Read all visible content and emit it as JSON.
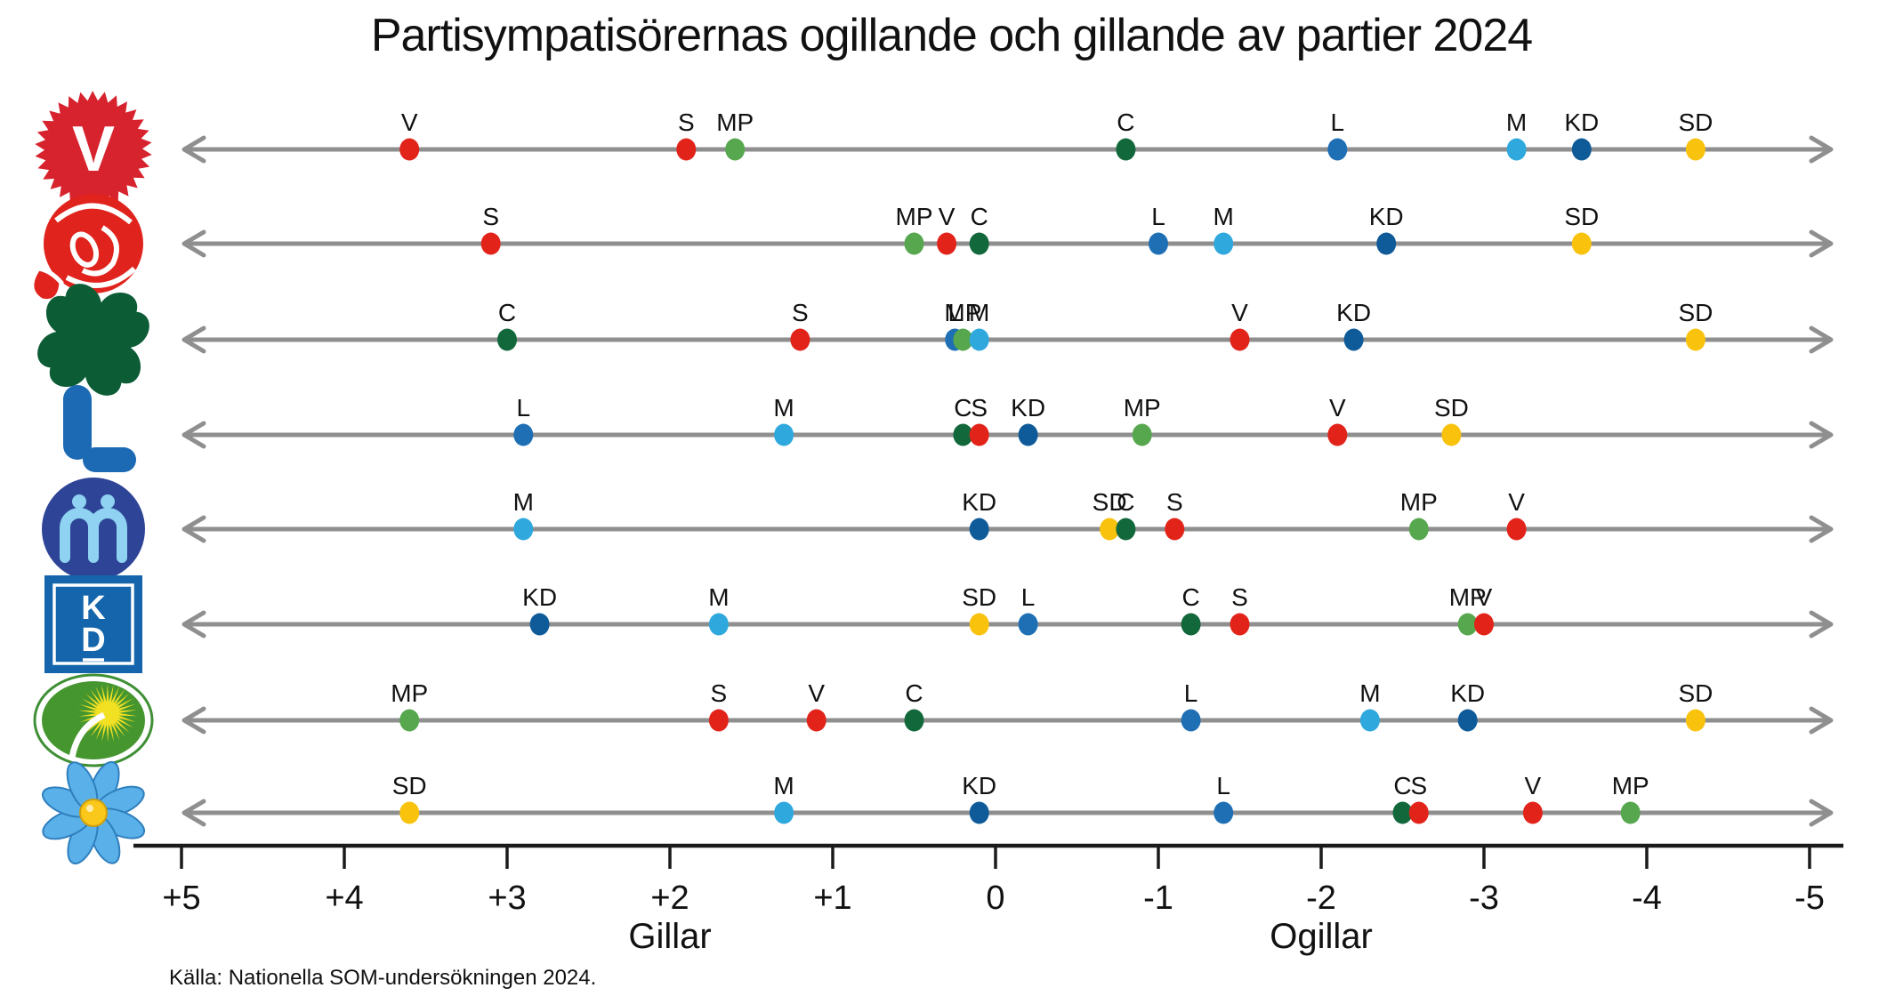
{
  "title": "Partisympatisörernas ogillande och gillande av partier 2024",
  "source": "Källa: Nationella SOM-undersökningen 2024.",
  "axis": {
    "min": -5,
    "max": 5,
    "tick_values": [
      5,
      4,
      3,
      2,
      1,
      0,
      -1,
      -2,
      -3,
      -4,
      -5
    ],
    "tick_labels": [
      "+5",
      "+4",
      "+3",
      "+2",
      "+1",
      "0",
      "-1",
      "-2",
      "-3",
      "-4",
      "-5"
    ],
    "like_label": "Gillar",
    "dislike_label": "Ogillar"
  },
  "party_colors": {
    "V": "#e2231a",
    "S": "#e2231a",
    "MP": "#56a74e",
    "C": "#12683b",
    "L": "#1f6fb5",
    "M": "#2fa8de",
    "KD": "#0f5b99",
    "SD": "#f9c20d"
  },
  "chart_data": {
    "type": "scatter",
    "description": "Dot number lines: each row shows how sympathizers of one party (logo at left) rate all parties on a like/dislike scale from +5 (Gillar) to -5 (Ogillar).",
    "scale": [
      5,
      -5
    ],
    "rows": [
      {
        "sympathizers": "V",
        "logo": "vansterpartiet-logo",
        "points": [
          {
            "party": "V",
            "value": 3.6
          },
          {
            "party": "S",
            "value": 1.9
          },
          {
            "party": "MP",
            "value": 1.6
          },
          {
            "party": "C",
            "value": -0.8
          },
          {
            "party": "L",
            "value": -2.1
          },
          {
            "party": "M",
            "value": -3.2
          },
          {
            "party": "KD",
            "value": -3.6
          },
          {
            "party": "SD",
            "value": -4.3
          }
        ]
      },
      {
        "sympathizers": "S",
        "logo": "socialdemokraterna-logo",
        "points": [
          {
            "party": "S",
            "value": 3.1
          },
          {
            "party": "MP",
            "value": 0.5
          },
          {
            "party": "V",
            "value": 0.3
          },
          {
            "party": "C",
            "value": 0.1
          },
          {
            "party": "L",
            "value": -1.0
          },
          {
            "party": "M",
            "value": -1.4
          },
          {
            "party": "KD",
            "value": -2.4
          },
          {
            "party": "SD",
            "value": -3.6
          }
        ]
      },
      {
        "sympathizers": "C",
        "logo": "centerpartiet-logo",
        "points": [
          {
            "party": "C",
            "value": 3.0
          },
          {
            "party": "S",
            "value": 1.2
          },
          {
            "party": "L",
            "value": 0.25
          },
          {
            "party": "MP",
            "value": 0.2
          },
          {
            "party": "M",
            "value": 0.1
          },
          {
            "party": "V",
            "value": -1.5
          },
          {
            "party": "KD",
            "value": -2.2
          },
          {
            "party": "SD",
            "value": -4.3
          }
        ]
      },
      {
        "sympathizers": "L",
        "logo": "liberalerna-logo",
        "points": [
          {
            "party": "L",
            "value": 2.9
          },
          {
            "party": "M",
            "value": 1.3
          },
          {
            "party": "C",
            "value": 0.2
          },
          {
            "party": "S",
            "value": 0.1
          },
          {
            "party": "KD",
            "value": -0.2
          },
          {
            "party": "MP",
            "value": -0.9
          },
          {
            "party": "V",
            "value": -2.1
          },
          {
            "party": "SD",
            "value": -2.8
          }
        ]
      },
      {
        "sympathizers": "M",
        "logo": "moderaterna-logo",
        "points": [
          {
            "party": "M",
            "value": 2.9
          },
          {
            "party": "KD",
            "value": 0.1
          },
          {
            "party": "SD",
            "value": -0.7
          },
          {
            "party": "C",
            "value": -0.8
          },
          {
            "party": "S",
            "value": -1.1
          },
          {
            "party": "MP",
            "value": -2.6
          },
          {
            "party": "V",
            "value": -3.2
          }
        ]
      },
      {
        "sympathizers": "KD",
        "logo": "kristdemokraterna-logo",
        "points": [
          {
            "party": "KD",
            "value": 2.8
          },
          {
            "party": "M",
            "value": 1.7
          },
          {
            "party": "SD",
            "value": 0.1
          },
          {
            "party": "L",
            "value": -0.2
          },
          {
            "party": "C",
            "value": -1.2
          },
          {
            "party": "S",
            "value": -1.5
          },
          {
            "party": "MP",
            "value": -2.9
          },
          {
            "party": "V",
            "value": -3.0
          }
        ]
      },
      {
        "sympathizers": "MP",
        "logo": "miljopartiet-logo",
        "points": [
          {
            "party": "MP",
            "value": 3.6
          },
          {
            "party": "S",
            "value": 1.7
          },
          {
            "party": "V",
            "value": 1.1
          },
          {
            "party": "C",
            "value": 0.5
          },
          {
            "party": "L",
            "value": -1.2
          },
          {
            "party": "M",
            "value": -2.3
          },
          {
            "party": "KD",
            "value": -2.9
          },
          {
            "party": "SD",
            "value": -4.3
          }
        ]
      },
      {
        "sympathizers": "SD",
        "logo": "sverigedemokraterna-logo",
        "points": [
          {
            "party": "SD",
            "value": 3.6
          },
          {
            "party": "M",
            "value": 1.3
          },
          {
            "party": "KD",
            "value": 0.1
          },
          {
            "party": "L",
            "value": -1.4
          },
          {
            "party": "C",
            "value": -2.5
          },
          {
            "party": "S",
            "value": -2.6
          },
          {
            "party": "V",
            "value": -3.3
          },
          {
            "party": "MP",
            "value": -3.9
          }
        ]
      }
    ]
  }
}
